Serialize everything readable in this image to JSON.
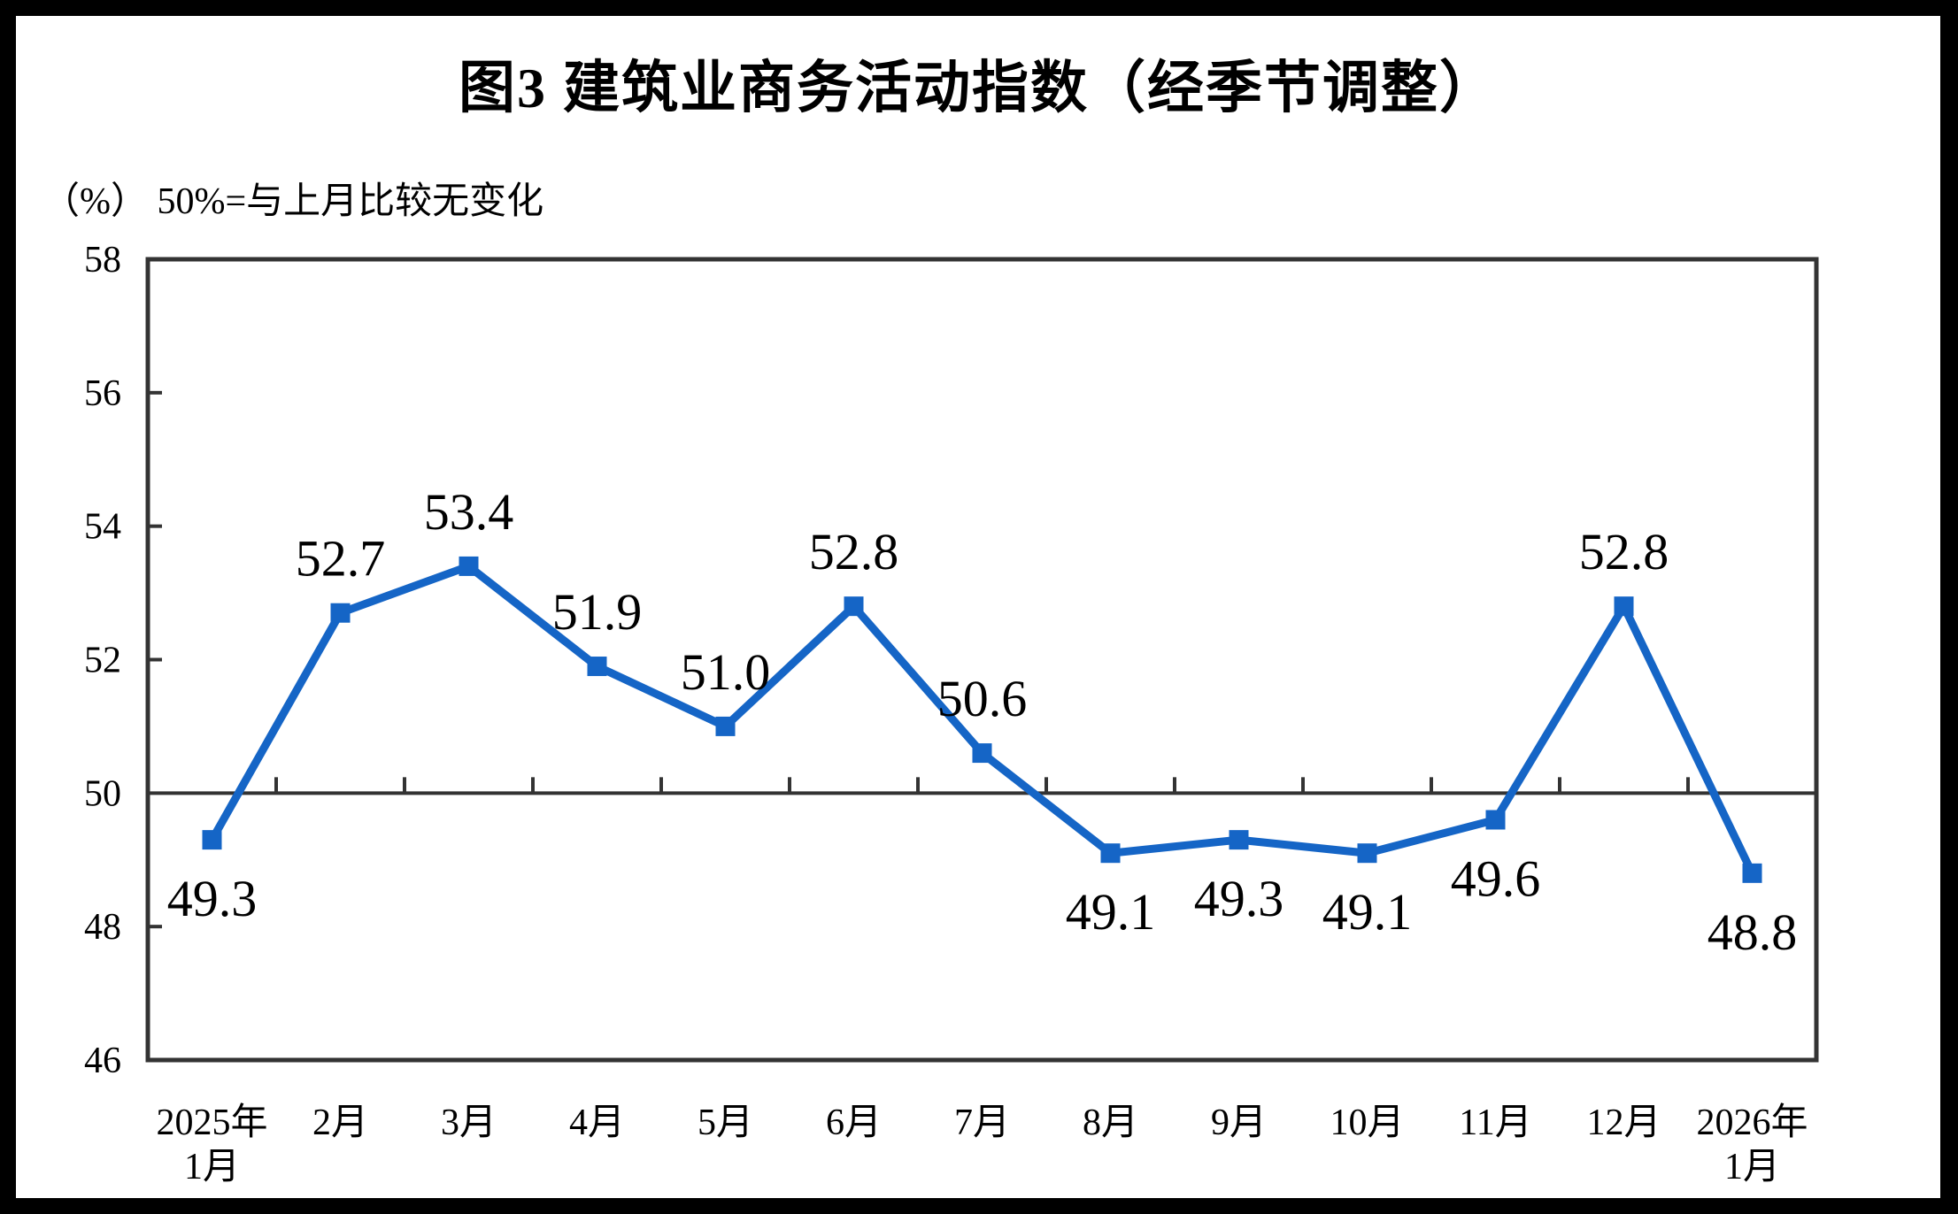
{
  "chart_data": {
    "type": "line",
    "title": "图3  建筑业商务活动指数（经季节调整）",
    "subtitle": "（%） 50%=与上月比较无变化",
    "categories": [
      "2025年\n1月",
      "2月",
      "3月",
      "4月",
      "5月",
      "6月",
      "7月",
      "8月",
      "9月",
      "10月",
      "11月",
      "12月",
      "2026年\n1月"
    ],
    "series": [
      {
        "name": "建筑业商务活动指数（经季节调整）",
        "values": [
          49.3,
          52.7,
          53.4,
          51.9,
          51.0,
          52.8,
          50.6,
          49.1,
          49.3,
          49.1,
          49.6,
          52.8,
          48.8
        ]
      }
    ],
    "value_decimals": 1,
    "ylim": [
      46,
      58
    ],
    "ytick_step": 2,
    "yticks": [
      46,
      48,
      50,
      52,
      54,
      56,
      58
    ],
    "reference_line": 50,
    "grid": false,
    "legend_position": "none",
    "line_color": "#1565C6",
    "axis_color": "#333333",
    "text_color": "#000000",
    "marker": "square"
  }
}
